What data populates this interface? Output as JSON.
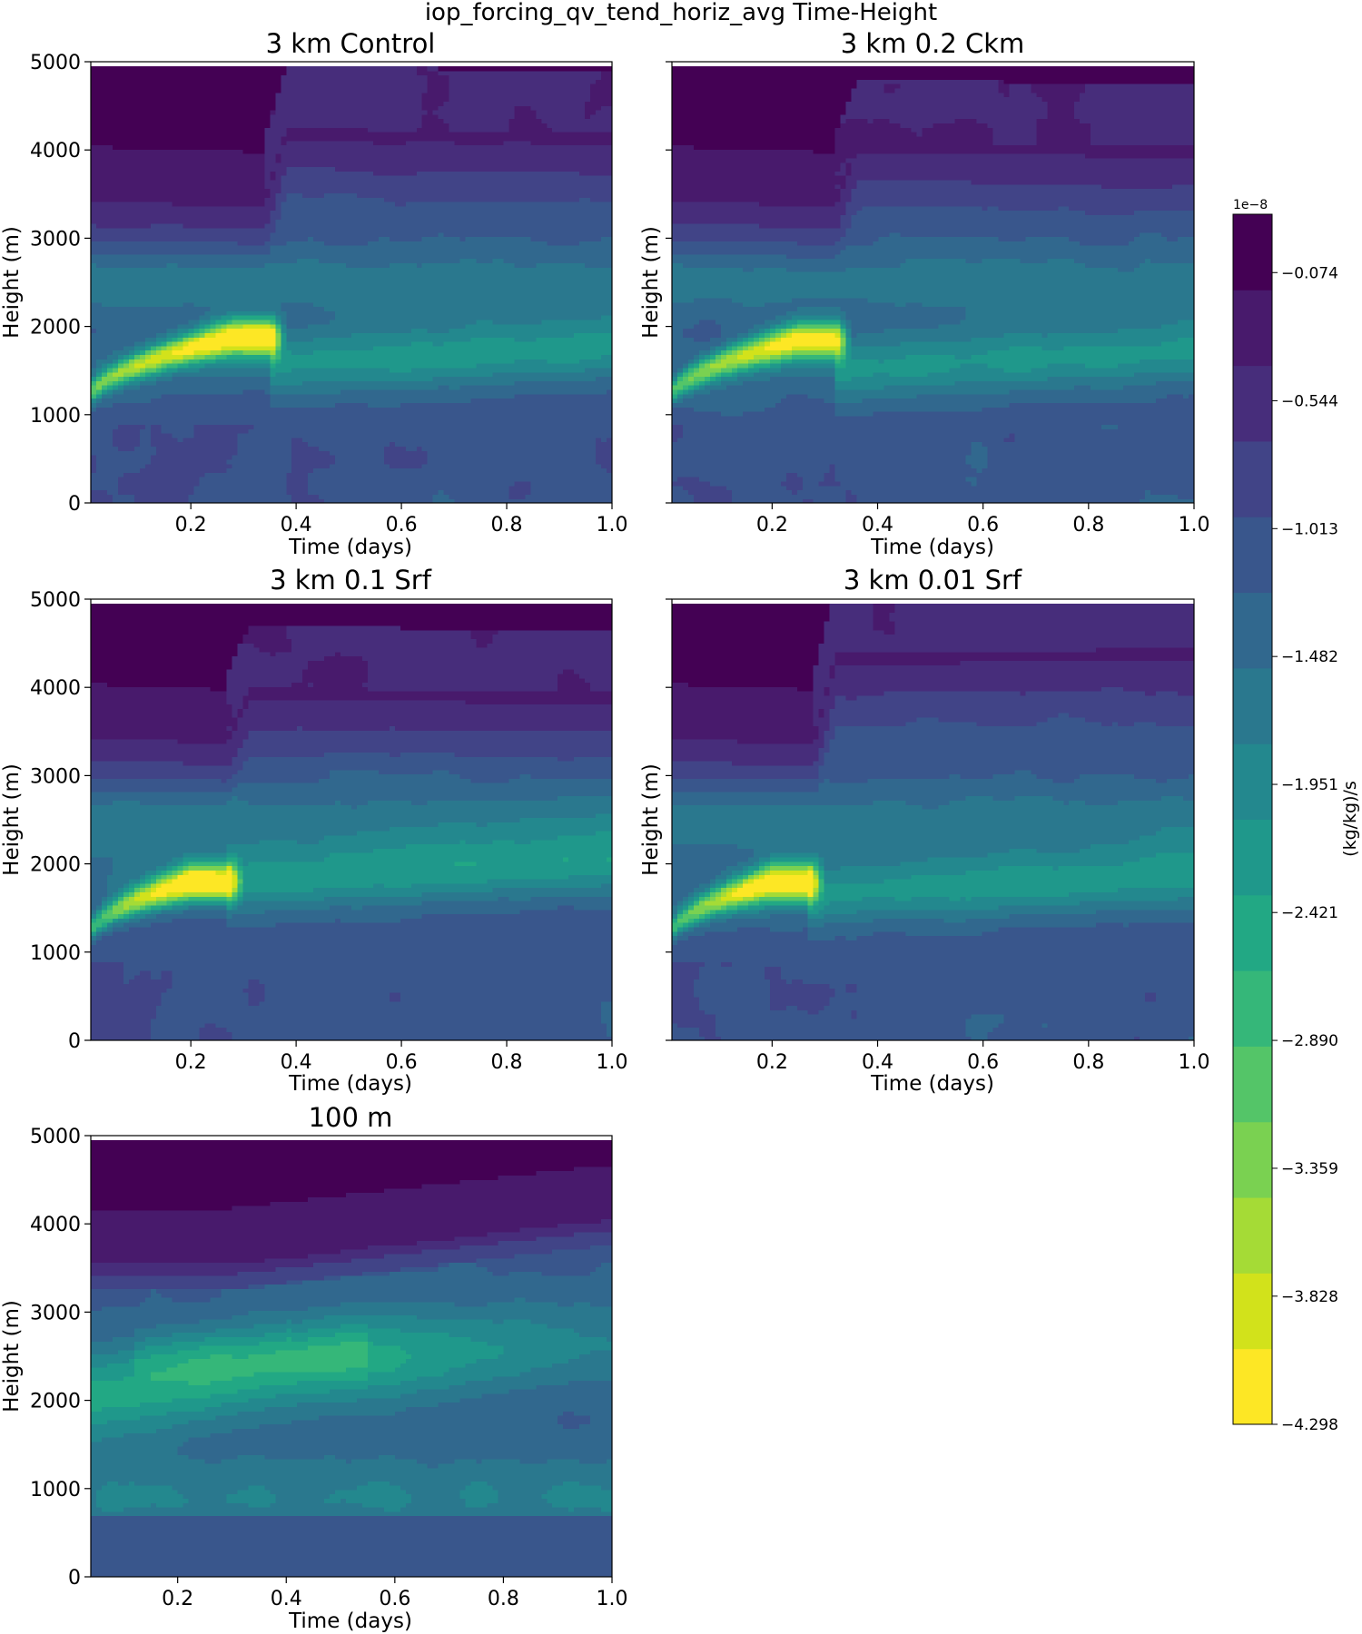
{
  "figure": {
    "suptitle": "iop_forcing_qv_tend_horiz_avg Time-Height"
  },
  "colors": {
    "levels": [
      "#fde725",
      "#d2e21b",
      "#a5db36",
      "#7ad151",
      "#54c568",
      "#35b779",
      "#22a884",
      "#1f988b",
      "#23888e",
      "#2a788e",
      "#31688e",
      "#39568c",
      "#414487",
      "#472d7b",
      "#481a6c",
      "#440154"
    ]
  },
  "chart_data": [
    {
      "type": "heatmap",
      "title": "3 km Control",
      "xlabel": "Time (days)",
      "ylabel": "Height (m)",
      "xlim": [
        0.01,
        1.0
      ],
      "ylim": [
        0,
        5000
      ],
      "xticks": [
        "0.2",
        "0.4",
        "0.6",
        "0.8",
        "1.0"
      ],
      "yticks": [
        "0",
        "1000",
        "2000",
        "3000",
        "4000",
        "5000"
      ],
      "regime": "crm",
      "params": {
        "blt": 3550,
        "blt_end": 4200,
        "transition_t": 0.34,
        "top_up": 4250,
        "jet_end_t": 0.35,
        "jet_peak_t": 0.28,
        "jet_peak_h": 1880,
        "jet_strength": 1.0,
        "band_h": 1650,
        "seed": 1
      }
    },
    {
      "type": "heatmap",
      "title": "3 km 0.2 Ckm",
      "xlabel": "Time (days)",
      "ylabel": "Height (m)",
      "xlim": [
        0.01,
        1.0
      ],
      "ylim": [
        0,
        5000
      ],
      "xticks": [
        "0.2",
        "0.4",
        "0.6",
        "0.8",
        "1.0"
      ],
      "yticks": [
        "0",
        "1000",
        "2000",
        "3000",
        "4000",
        "5000"
      ],
      "regime": "crm",
      "params": {
        "blt": 3550,
        "blt_end": 4050,
        "transition_t": 0.32,
        "top_up": 4100,
        "jet_end_t": 0.32,
        "jet_peak_t": 0.25,
        "jet_peak_h": 1850,
        "jet_strength": 0.93,
        "band_h": 1600,
        "seed": 2
      }
    },
    {
      "type": "heatmap",
      "title": "3 km 0.1 Srf",
      "xlabel": "Time (days)",
      "ylabel": "Height (m)",
      "xlim": [
        0.01,
        1.0
      ],
      "ylim": [
        0,
        5000
      ],
      "xticks": [
        "0.2",
        "0.4",
        "0.6",
        "0.8",
        "1.0"
      ],
      "yticks": [
        "0",
        "1000",
        "2000",
        "3000",
        "4000",
        "5000"
      ],
      "regime": "crm",
      "params": {
        "blt": 3550,
        "blt_end": 3950,
        "transition_t": 0.27,
        "top_up": 4000,
        "jet_end_t": 0.27,
        "jet_peak_t": 0.2,
        "jet_peak_h": 1800,
        "jet_strength": 0.95,
        "band_h": 1900,
        "seed": 3
      }
    },
    {
      "type": "heatmap",
      "title": "3 km 0.01 Srf",
      "xlabel": "Time (days)",
      "ylabel": "Height (m)",
      "xlim": [
        0.01,
        1.0
      ],
      "ylim": [
        0,
        5000
      ],
      "xticks": [
        "0.2",
        "0.4",
        "0.6",
        "0.8",
        "1.0"
      ],
      "yticks": [
        "0",
        "1000",
        "2000",
        "3000",
        "4000",
        "5000"
      ],
      "regime": "crm",
      "params": {
        "blt": 3550,
        "blt_end": 4450,
        "transition_t": 0.28,
        "top_up": 4400,
        "jet_end_t": 0.27,
        "jet_peak_t": 0.2,
        "jet_peak_h": 1800,
        "jet_strength": 0.92,
        "band_h": 1750,
        "seed": 4
      }
    },
    {
      "type": "heatmap",
      "title": "100 m",
      "xlabel": "Time (days)",
      "ylabel": "Height (m)",
      "xlim": [
        0.04,
        1.0
      ],
      "ylim": [
        0,
        5000
      ],
      "xticks": [
        "0.2",
        "0.4",
        "0.6",
        "0.8",
        "1.0"
      ],
      "yticks": [
        "0",
        "1000",
        "2000",
        "3000",
        "4000",
        "5000"
      ],
      "regime": "les",
      "params": {
        "blt": 3550,
        "blt_end": 4050,
        "transition_t": 0.3,
        "top_up": 4050,
        "jet_end_t": 0.0,
        "jet_peak_t": 0.35,
        "jet_peak_h": 2500,
        "jet_strength": 0.5,
        "band_h": 2500,
        "seed": 5
      }
    }
  ],
  "colorbar": {
    "label": "(kg/kg)/s",
    "exponent": "1e−8",
    "min": -4.298,
    "max": 0.14,
    "ticks": [
      "−0.074",
      "−0.544",
      "−1.013",
      "−1.482",
      "−1.951",
      "−2.421",
      "−2.890",
      "−3.359",
      "−3.828",
      "−4.298"
    ]
  }
}
